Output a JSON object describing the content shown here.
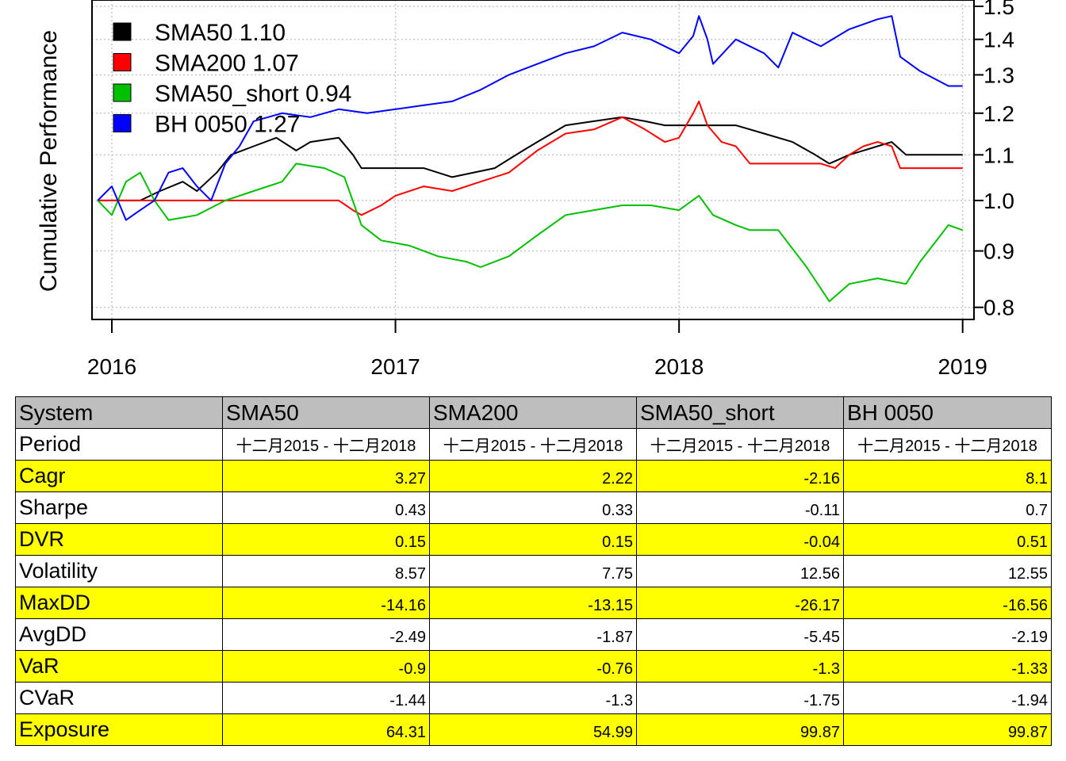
{
  "chart_data": {
    "type": "line",
    "ylabel": "Cumulative Performance",
    "xlim": [
      2015.93,
      2019.04
    ],
    "ylim": [
      0.78,
      1.52
    ],
    "y_scale": "log",
    "grid": true,
    "legend_position": "top-left",
    "x_ticks": [
      "2016",
      "2017",
      "2018",
      "2019"
    ],
    "y_ticks": [
      "0.8",
      "0.9",
      "1.0",
      "1.1",
      "1.2",
      "1.3",
      "1.4",
      "1.5"
    ],
    "legend": [
      "SMA50 1.10",
      "SMA200 1.07",
      "SMA50_short 0.94",
      "BH 0050 1.27"
    ],
    "series": [
      {
        "name": "SMA50",
        "color": "#000000",
        "x": [
          2015.95,
          2016.1,
          2016.17,
          2016.25,
          2016.3,
          2016.37,
          2016.42,
          2016.5,
          2016.58,
          2016.65,
          2016.7,
          2016.8,
          2016.85,
          2016.88,
          2017.0,
          2017.1,
          2017.2,
          2017.35,
          2017.45,
          2017.5,
          2017.6,
          2017.7,
          2017.8,
          2017.88,
          2017.95,
          2018.05,
          2018.1,
          2018.2,
          2018.3,
          2018.4,
          2018.48,
          2018.53,
          2018.6,
          2018.65,
          2018.7,
          2018.75,
          2018.8,
          2019.0
        ],
        "y": [
          1.0,
          1.0,
          1.02,
          1.04,
          1.02,
          1.06,
          1.1,
          1.12,
          1.14,
          1.11,
          1.13,
          1.14,
          1.1,
          1.07,
          1.07,
          1.07,
          1.05,
          1.07,
          1.11,
          1.13,
          1.17,
          1.18,
          1.19,
          1.18,
          1.17,
          1.17,
          1.17,
          1.17,
          1.15,
          1.13,
          1.1,
          1.08,
          1.1,
          1.11,
          1.12,
          1.13,
          1.1,
          1.1
        ]
      },
      {
        "name": "SMA200",
        "color": "#ff0000",
        "x": [
          2015.95,
          2016.8,
          2016.85,
          2016.88,
          2016.95,
          2017.0,
          2017.1,
          2017.2,
          2017.3,
          2017.4,
          2017.5,
          2017.6,
          2017.7,
          2017.8,
          2017.88,
          2017.95,
          2018.0,
          2018.05,
          2018.07,
          2018.1,
          2018.15,
          2018.2,
          2018.25,
          2018.3,
          2018.4,
          2018.5,
          2018.55,
          2018.6,
          2018.65,
          2018.7,
          2018.75,
          2018.78,
          2019.0
        ],
        "y": [
          1.0,
          1.0,
          0.98,
          0.97,
          0.99,
          1.01,
          1.03,
          1.02,
          1.04,
          1.06,
          1.11,
          1.15,
          1.16,
          1.19,
          1.16,
          1.13,
          1.14,
          1.2,
          1.23,
          1.17,
          1.13,
          1.12,
          1.08,
          1.08,
          1.08,
          1.08,
          1.07,
          1.1,
          1.12,
          1.13,
          1.12,
          1.07,
          1.07
        ]
      },
      {
        "name": "SMA50_short",
        "color": "#00c000",
        "x": [
          2015.95,
          2016.0,
          2016.05,
          2016.1,
          2016.15,
          2016.2,
          2016.3,
          2016.4,
          2016.5,
          2016.6,
          2016.65,
          2016.75,
          2016.82,
          2016.88,
          2016.95,
          2017.05,
          2017.15,
          2017.25,
          2017.3,
          2017.4,
          2017.5,
          2017.6,
          2017.7,
          2017.8,
          2017.9,
          2018.0,
          2018.07,
          2018.12,
          2018.2,
          2018.25,
          2018.35,
          2018.45,
          2018.53,
          2018.6,
          2018.7,
          2018.8,
          2018.85,
          2018.95,
          2019.0
        ],
        "y": [
          1.0,
          0.97,
          1.04,
          1.06,
          1.0,
          0.96,
          0.97,
          1.0,
          1.02,
          1.04,
          1.08,
          1.07,
          1.05,
          0.95,
          0.92,
          0.91,
          0.89,
          0.88,
          0.87,
          0.89,
          0.93,
          0.97,
          0.98,
          0.99,
          0.99,
          0.98,
          1.01,
          0.97,
          0.95,
          0.94,
          0.94,
          0.87,
          0.81,
          0.84,
          0.85,
          0.84,
          0.88,
          0.95,
          0.94
        ]
      },
      {
        "name": "BH 0050",
        "color": "#0000ff",
        "x": [
          2015.95,
          2016.0,
          2016.05,
          2016.1,
          2016.15,
          2016.2,
          2016.25,
          2016.3,
          2016.35,
          2016.4,
          2016.45,
          2016.5,
          2016.6,
          2016.7,
          2016.8,
          2016.9,
          2017.0,
          2017.1,
          2017.2,
          2017.3,
          2017.4,
          2017.5,
          2017.6,
          2017.7,
          2017.8,
          2017.9,
          2018.0,
          2018.05,
          2018.07,
          2018.1,
          2018.12,
          2018.2,
          2018.3,
          2018.35,
          2018.4,
          2018.5,
          2018.6,
          2018.7,
          2018.75,
          2018.78,
          2018.85,
          2018.95,
          2019.0
        ],
        "y": [
          1.0,
          1.03,
          0.96,
          0.98,
          1.0,
          1.06,
          1.07,
          1.03,
          1.0,
          1.08,
          1.12,
          1.18,
          1.2,
          1.19,
          1.21,
          1.2,
          1.21,
          1.22,
          1.23,
          1.26,
          1.3,
          1.33,
          1.36,
          1.38,
          1.42,
          1.4,
          1.36,
          1.41,
          1.47,
          1.4,
          1.33,
          1.4,
          1.36,
          1.32,
          1.42,
          1.38,
          1.43,
          1.46,
          1.47,
          1.35,
          1.31,
          1.27,
          1.27
        ]
      }
    ]
  },
  "table": {
    "headers": [
      "System",
      "SMA50",
      "SMA200",
      "SMA50_short",
      "BH 0050"
    ],
    "period": {
      "label": "Period",
      "values": [
        "十二月2015 - 十二月2018",
        "十二月2015 - 十二月2018",
        "十二月2015 - 十二月2018",
        "十二月2015 - 十二月2018"
      ]
    },
    "rows": [
      {
        "label": "Cagr",
        "highlight": true,
        "values": [
          "3.27",
          "2.22",
          "-2.16",
          "8.1"
        ]
      },
      {
        "label": "Sharpe",
        "highlight": false,
        "values": [
          "0.43",
          "0.33",
          "-0.11",
          "0.7"
        ]
      },
      {
        "label": "DVR",
        "highlight": true,
        "values": [
          "0.15",
          "0.15",
          "-0.04",
          "0.51"
        ]
      },
      {
        "label": "Volatility",
        "highlight": false,
        "values": [
          "8.57",
          "7.75",
          "12.56",
          "12.55"
        ]
      },
      {
        "label": "MaxDD",
        "highlight": true,
        "values": [
          "-14.16",
          "-13.15",
          "-26.17",
          "-16.56"
        ]
      },
      {
        "label": "AvgDD",
        "highlight": false,
        "values": [
          "-2.49",
          "-1.87",
          "-5.45",
          "-2.19"
        ]
      },
      {
        "label": "VaR",
        "highlight": true,
        "values": [
          "-0.9",
          "-0.76",
          "-1.3",
          "-1.33"
        ]
      },
      {
        "label": "CVaR",
        "highlight": false,
        "values": [
          "-1.44",
          "-1.3",
          "-1.75",
          "-1.94"
        ]
      },
      {
        "label": "Exposure",
        "highlight": true,
        "values": [
          "64.31",
          "54.99",
          "99.87",
          "99.87"
        ]
      }
    ],
    "highlight_color": "#ffff00",
    "header_color": "#bebebe"
  }
}
